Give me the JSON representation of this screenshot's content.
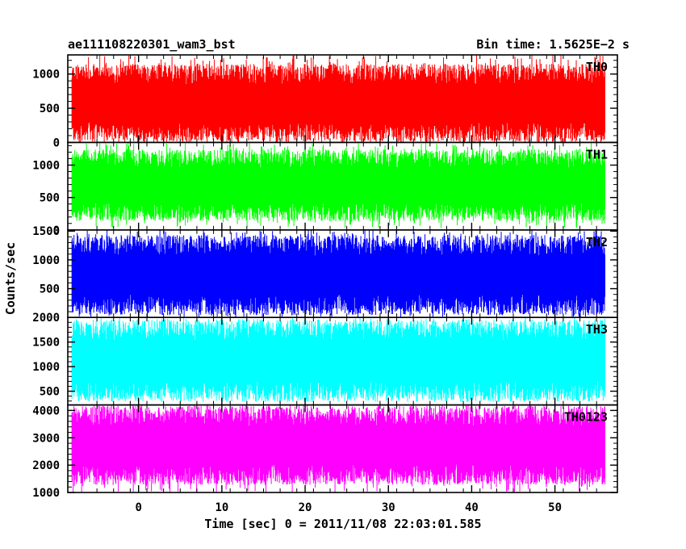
{
  "chart_data": {
    "type": "line",
    "title": "ae111108220301_wam3_bst",
    "bin_time_label": "Bin time: 1.5625E−2 s",
    "xlabel": "Time [sec] 0 = 2011/11/08 22:03:01.585",
    "ylabel": "Counts/sec",
    "xlim": [
      -8.5,
      57.5
    ],
    "x_range_data": [
      -8.0,
      56.0
    ],
    "x_ticks": [
      0,
      10,
      20,
      30,
      40,
      50
    ],
    "x_tick_labels": [
      "0",
      "10",
      "20",
      "30",
      "40",
      "50"
    ],
    "panels": [
      {
        "name": "TH0",
        "color": "#ff0000",
        "ylim": [
          0,
          1280
        ],
        "yticks": [
          0,
          500,
          1000
        ],
        "ytick_labels": [
          "0",
          "500",
          "1000"
        ],
        "mean": 580,
        "band_low": 150,
        "band_high": 1000,
        "spike_low": 0,
        "spike_high": 1280
      },
      {
        "name": "TH1",
        "color": "#00ff00",
        "ylim": [
          0,
          1350
        ],
        "yticks": [
          0,
          500,
          1000
        ],
        "ytick_labels": [
          "0",
          "500",
          "1000"
        ],
        "mean": 700,
        "band_low": 280,
        "band_high": 1100,
        "spike_low": 30,
        "spike_high": 1350
      },
      {
        "name": "TH2",
        "color": "#0000ff",
        "ylim": [
          0,
          1520
        ],
        "yticks": [
          500,
          1000,
          1500
        ],
        "ytick_labels": [
          "500",
          "1000",
          "1500"
        ],
        "mean": 740,
        "band_low": 220,
        "band_high": 1250,
        "spike_low": 0,
        "spike_high": 1520
      },
      {
        "name": "TH3",
        "color": "#00ffff",
        "ylim": [
          220,
          2000
        ],
        "yticks": [
          500,
          1000,
          1500,
          2000
        ],
        "ytick_labels": [
          "500",
          "1000",
          "1500",
          "2000"
        ],
        "mean": 1100,
        "band_low": 500,
        "band_high": 1750,
        "spike_low": 280,
        "spike_high": 2000
      },
      {
        "name": "TH0123",
        "color": "#ff00ff",
        "ylim": [
          1000,
          4200
        ],
        "yticks": [
          1000,
          2000,
          3000,
          4000
        ],
        "ytick_labels": [
          "1000",
          "2000",
          "3000",
          "4000"
        ],
        "mean": 2650,
        "band_low": 1650,
        "band_high": 3800,
        "spike_low": 1000,
        "spike_high": 4200
      }
    ],
    "grid": false,
    "legend": "none"
  }
}
